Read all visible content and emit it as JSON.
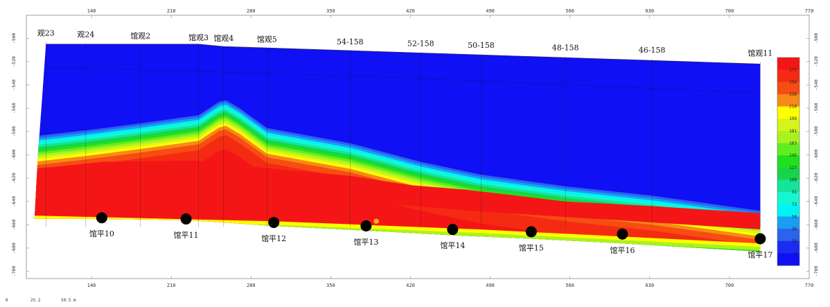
{
  "chart_data": {
    "type": "heatmap",
    "x_ticks": [
      140,
      210,
      280,
      350,
      420,
      490,
      560,
      630,
      700,
      770
    ],
    "y_ticks": [
      -500,
      -520,
      -540,
      -560,
      -580,
      -600,
      -620,
      -640,
      -660,
      -680,
      -700
    ],
    "xlim": [
      84,
      770
    ],
    "ylim": [
      -705,
      -482
    ],
    "colorbar": {
      "ticks": [
        272,
        254,
        236,
        218,
        199,
        181,
        163,
        145,
        127,
        109,
        91,
        73,
        54,
        36,
        18,
        0
      ],
      "colors": [
        "#f41616",
        "#f52a12",
        "#f64d12",
        "#f78a14",
        "#ffff00",
        "#d8f51b",
        "#aaf21f",
        "#61ee1f",
        "#1fe11f",
        "#18d44a",
        "#13e59a",
        "#15f7d0",
        "#00f4f4",
        "#1a9ef2",
        "#2b63f0",
        "#1b2cf0",
        "#1010f4"
      ]
    },
    "wells_top": [
      {
        "label": "观23",
        "x": 100
      },
      {
        "label": "观24",
        "x": 135
      },
      {
        "label": "馆观2",
        "x": 183
      },
      {
        "label": "馆观3",
        "x": 234
      },
      {
        "label": "馆观4",
        "x": 256
      },
      {
        "label": "馆观5",
        "x": 294
      },
      {
        "label": "54-158",
        "x": 367
      },
      {
        "label": "52-158",
        "x": 429
      },
      {
        "label": "50-158",
        "x": 482
      },
      {
        "label": "48-158",
        "x": 556
      },
      {
        "label": "46-158",
        "x": 632
      },
      {
        "label": "馆观11",
        "x": 727
      }
    ],
    "wells_bottom": [
      {
        "label": "馆平10",
        "x": 149,
        "y": -654
      },
      {
        "label": "馆平11",
        "x": 223,
        "y": -655
      },
      {
        "label": "馆平12",
        "x": 300,
        "y": -658
      },
      {
        "label": "馆平13",
        "x": 381,
        "y": -661
      },
      {
        "label": "馆平14",
        "x": 457,
        "y": -664
      },
      {
        "label": "馆平15",
        "x": 526,
        "y": -666
      },
      {
        "label": "馆平16",
        "x": 606,
        "y": -668
      },
      {
        "label": "馆平17",
        "x": 727,
        "y": -672
      }
    ],
    "scale_bar": {
      "labels": [
        "0",
        "25.2",
        "50.5 m"
      ]
    }
  },
  "colors": {
    "background": "#ffffff",
    "frame": "#888888",
    "tick_label": "#333333",
    "grid": "#111111",
    "marker": "#000000",
    "hotspot": "#f5a623"
  }
}
